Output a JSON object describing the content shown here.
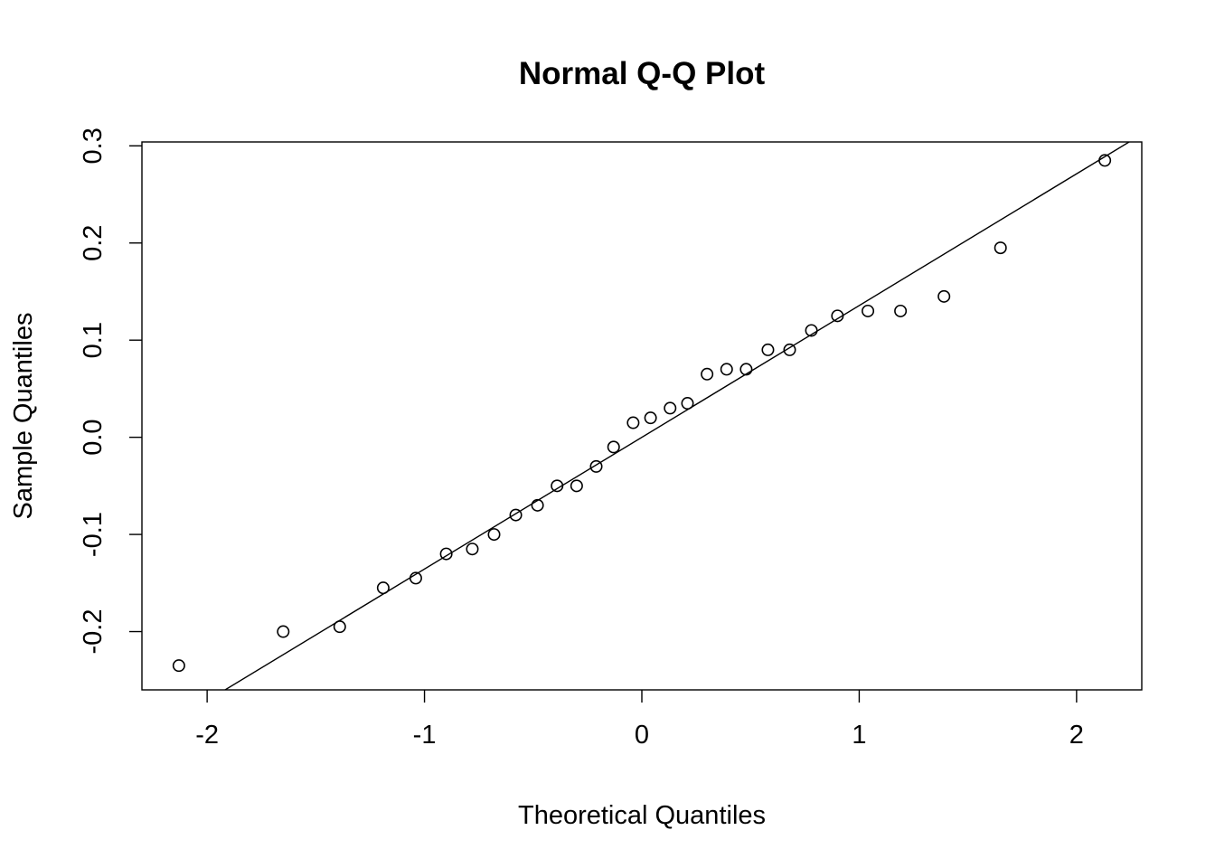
{
  "chart_data": {
    "type": "scatter",
    "title": "Normal Q-Q Plot",
    "xlabel": "Theoretical Quantiles",
    "ylabel": "Sample Quantiles",
    "xlim": [
      -2.3,
      2.3
    ],
    "ylim": [
      -0.26,
      0.304
    ],
    "x_ticks": [
      -2,
      -1,
      0,
      1,
      2
    ],
    "x_tick_labels": [
      "-2",
      "-1",
      "0",
      "1",
      "2"
    ],
    "y_ticks": [
      -0.2,
      -0.1,
      0.0,
      0.1,
      0.2,
      0.3
    ],
    "y_tick_labels": [
      "-0.2",
      "-0.1",
      "0.0",
      "0.1",
      "0.2",
      "0.3"
    ],
    "grid": false,
    "marker": "open-circle",
    "colors": {
      "points": "#000000",
      "line": "#000000",
      "axes": "#000000"
    },
    "series": [
      {
        "x": [
          -2.13,
          -1.65,
          -1.39,
          -1.19,
          -1.04,
          -0.9,
          -0.78,
          -0.68,
          -0.58,
          -0.48,
          -0.39,
          -0.3,
          -0.21,
          -0.13,
          -0.04,
          0.04,
          0.13,
          0.21,
          0.3,
          0.39,
          0.48,
          0.58,
          0.68,
          0.78,
          0.9,
          1.04,
          1.19,
          1.39,
          1.65,
          2.13
        ],
        "y": [
          -0.235,
          -0.2,
          -0.195,
          -0.155,
          -0.145,
          -0.12,
          -0.115,
          -0.1,
          -0.08,
          -0.07,
          -0.05,
          -0.05,
          -0.03,
          -0.01,
          0.015,
          0.02,
          0.03,
          0.035,
          0.065,
          0.07,
          0.07,
          0.09,
          0.09,
          0.11,
          0.125,
          0.13,
          0.13,
          0.145,
          0.195,
          0.285
        ]
      }
    ],
    "reference_line": {
      "intercept": 0.0,
      "slope": 0.1356
    }
  }
}
